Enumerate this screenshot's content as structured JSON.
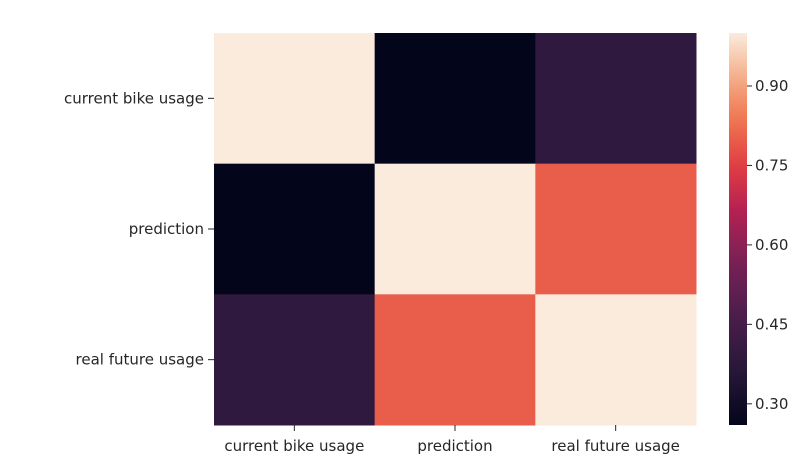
{
  "chart_data": {
    "type": "heatmap",
    "title": "",
    "xlabel": "",
    "ylabel": "",
    "x_categories": [
      "current bike usage",
      "prediction",
      "real future usage"
    ],
    "y_categories": [
      "current bike usage",
      "prediction",
      "real future usage"
    ],
    "values": [
      [
        1.0,
        0.26,
        0.39
      ],
      [
        0.26,
        1.0,
        0.8
      ],
      [
        0.39,
        0.8,
        1.0
      ]
    ],
    "colormap": "rocket",
    "colorbar": {
      "vmin": 0.26,
      "vmax": 1.0,
      "ticks": [
        0.3,
        0.45,
        0.6,
        0.75,
        0.9
      ],
      "tick_labels": [
        "0.30",
        "0.45",
        "0.60",
        "0.75",
        "0.90"
      ]
    },
    "grid": false
  }
}
